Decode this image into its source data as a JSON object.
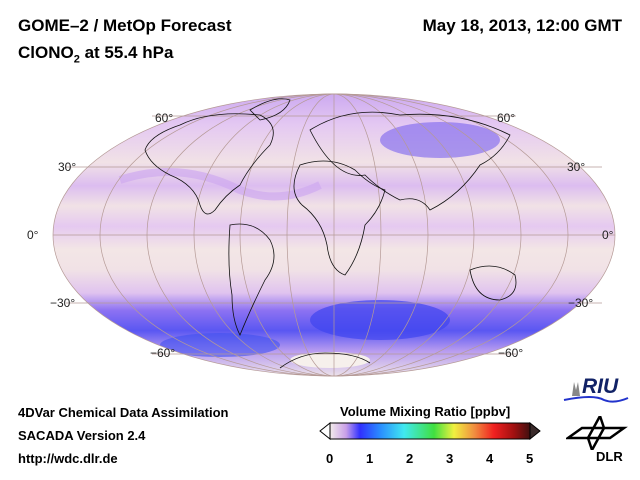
{
  "header": {
    "title": "GOME–2 / MetOp Forecast",
    "species": "ClONO",
    "species_sub": "2",
    "level": " at 55.4 hPa",
    "datetime": "May 18, 2013, 12:00 GMT"
  },
  "map": {
    "projection": "Mollweide",
    "lat_labels_left": [
      "60°",
      "30°",
      "0°",
      "−30°",
      "−60°"
    ],
    "lat_labels_right": [
      "60°",
      "30°",
      "0°",
      "−30°",
      "−60°"
    ],
    "colors": {
      "background": "#f1e2e6",
      "low": "#d9b8ef",
      "mid": "#9f7bf0",
      "high": "#4a4cf2"
    }
  },
  "footer": {
    "line1": "4DVar Chemical Data Assimilation",
    "line2": "SACADA Version 2.4",
    "line3": "http://wdc.dlr.de"
  },
  "colorbar": {
    "title": "Volume Mixing Ratio [ppbv]",
    "ticks": [
      "0",
      "1",
      "2",
      "3",
      "4",
      "5"
    ],
    "range": [
      0,
      5
    ]
  },
  "logos": {
    "riu": "RIU",
    "dlr": "DLR"
  }
}
